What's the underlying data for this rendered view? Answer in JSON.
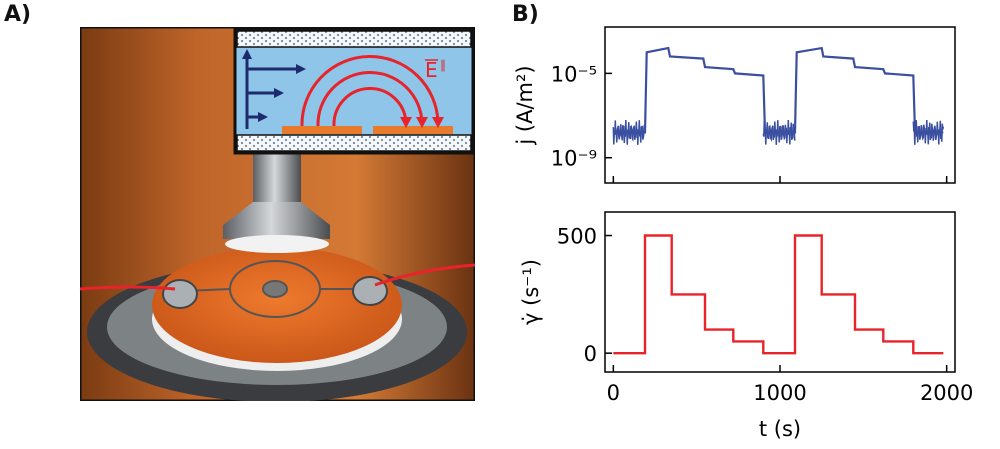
{
  "panels": {
    "a_label": "A)",
    "b_label": "B)"
  },
  "photo": {
    "inset_field_label": "E",
    "inset_field_sup": "∥"
  },
  "colors": {
    "current": "#3a4fa0",
    "shear": "#e8232a",
    "electrode": "#e87a2c",
    "field_lines": "#e8232a",
    "flow_arrows": "#1d2b6e",
    "inset_bg": "#8ec5e8"
  },
  "chart_data": [
    {
      "type": "line",
      "title": "",
      "xlabel": "",
      "ylabel": "j (A/m²)",
      "yscale": "log",
      "xlim": [
        -50,
        2050
      ],
      "ylim_exponent": [
        -10.2,
        -2.8
      ],
      "yticks": [
        {
          "exp": -5,
          "label": "10⁻⁵"
        },
        {
          "exp": -9,
          "label": "10⁻⁹"
        }
      ],
      "xticks": [
        0,
        1000,
        2000
      ],
      "series": [
        {
          "x": [
            0,
            190,
            200,
            330,
            340,
            540,
            550,
            720,
            730,
            900,
            910,
            1090,
            1100,
            1250,
            1260,
            1440,
            1450,
            1620,
            1630,
            1800,
            1810,
            1980
          ],
          "log10_y": [
            -7.8,
            -7.8,
            -4.0,
            -3.8,
            -4.2,
            -4.3,
            -4.7,
            -4.8,
            -5.0,
            -5.1,
            -7.8,
            -7.8,
            -4.0,
            -3.8,
            -4.2,
            -4.3,
            -4.7,
            -4.8,
            -5.0,
            -5.1,
            -7.8,
            -7.8
          ]
        }
      ]
    },
    {
      "type": "line",
      "title": "",
      "xlabel": "t (s)",
      "ylabel": "γ̇ (s⁻¹)",
      "xlim": [
        -50,
        2050
      ],
      "ylim": [
        -80,
        600
      ],
      "yticks": [
        0,
        500
      ],
      "xticks": [
        0,
        1000,
        2000
      ],
      "series": [
        {
          "x": [
            0,
            190,
            190,
            350,
            350,
            550,
            550,
            720,
            720,
            900,
            900,
            1090,
            1090,
            1250,
            1250,
            1450,
            1450,
            1620,
            1620,
            1800,
            1800,
            1980
          ],
          "values": [
            0,
            0,
            500,
            500,
            250,
            250,
            100,
            100,
            50,
            50,
            0,
            0,
            500,
            500,
            250,
            250,
            100,
            100,
            50,
            50,
            0,
            0
          ]
        }
      ]
    }
  ]
}
